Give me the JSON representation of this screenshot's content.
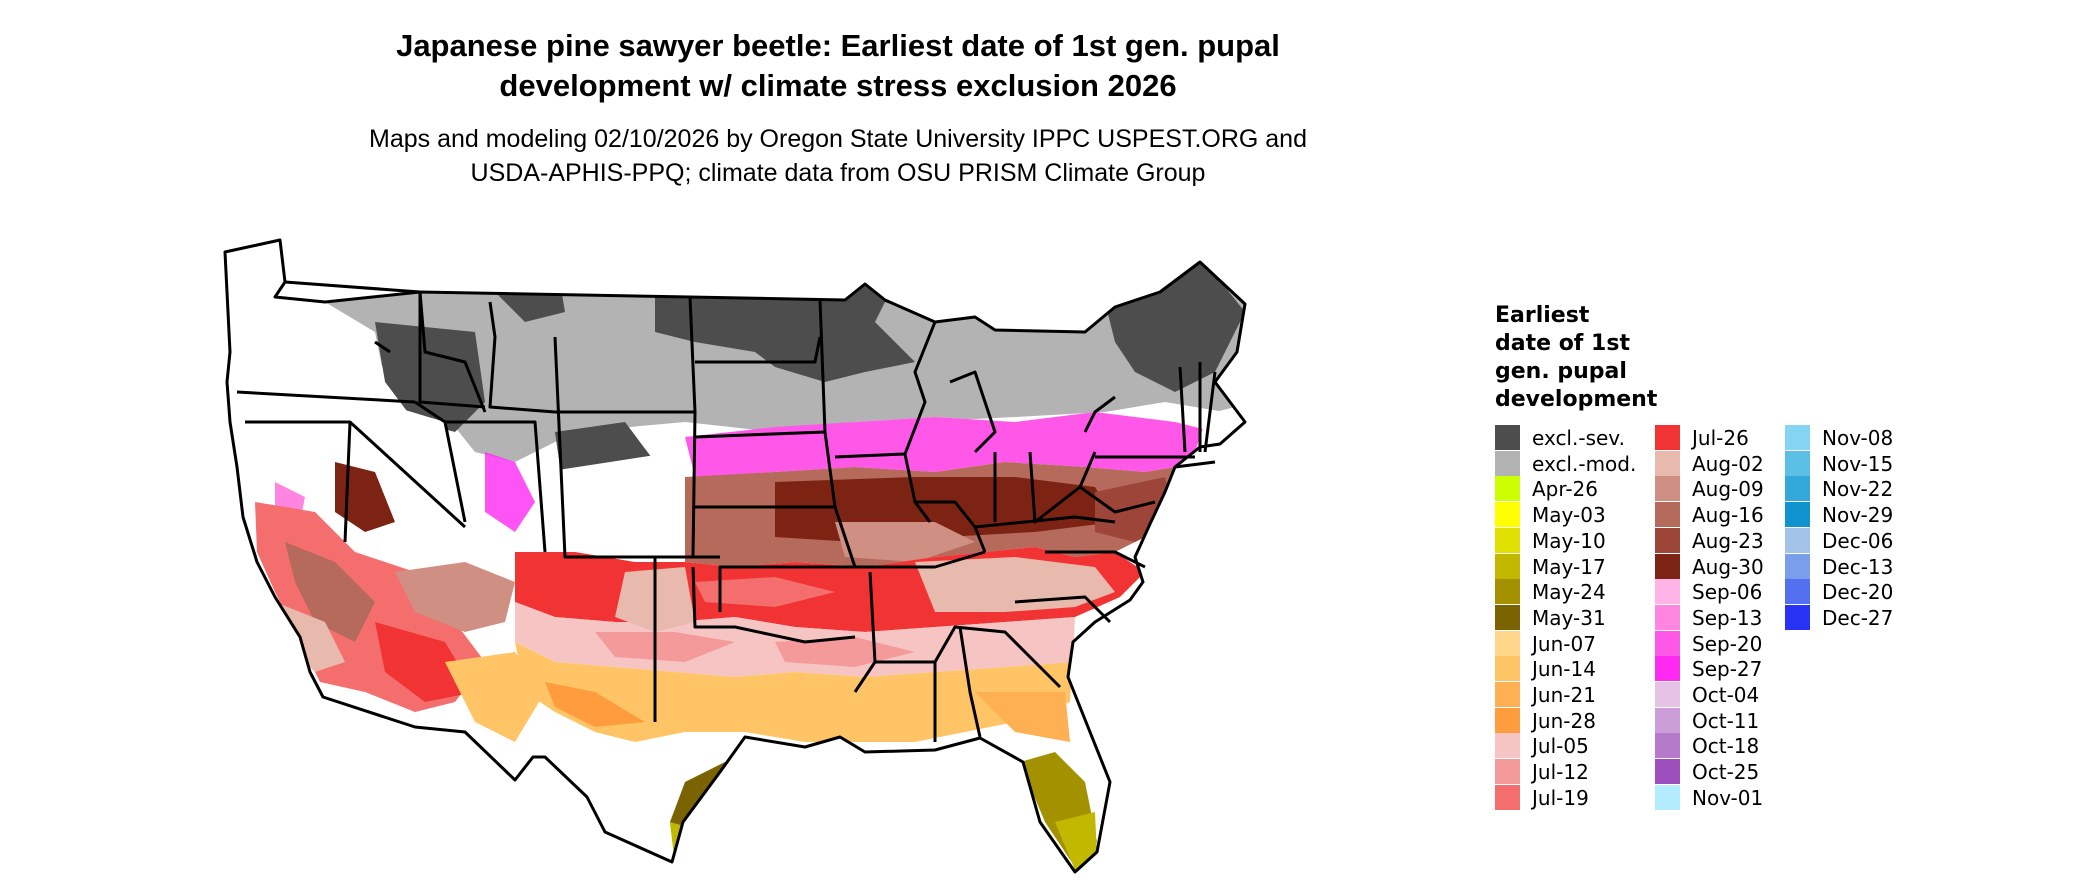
{
  "title_line1": "Japanese pine sawyer beetle: Earliest date of 1st gen. pupal",
  "title_line2": "development w/ climate stress exclusion 2026",
  "subtitle_line1": "Maps and modeling 02/10/2026 by Oregon State University IPPC USPEST.ORG and",
  "subtitle_line2": "USDA-APHIS-PPQ; climate data from OSU PRISM Climate Group",
  "legend": {
    "title_lines": [
      "Earliest",
      "date of 1st",
      "gen. pupal",
      "development"
    ],
    "columns": [
      [
        {
          "label": "excl.-sev.",
          "color": "#4d4d4d"
        },
        {
          "label": "excl.-mod.",
          "color": "#b3b3b3"
        },
        {
          "label": "Apr-26",
          "color": "#ccff00"
        },
        {
          "label": "May-03",
          "color": "#ffff00"
        },
        {
          "label": "May-10",
          "color": "#e0e000"
        },
        {
          "label": "May-17",
          "color": "#c2b800"
        },
        {
          "label": "May-24",
          "color": "#a39100"
        },
        {
          "label": "May-31",
          "color": "#7a6300"
        },
        {
          "label": "Jun-07",
          "color": "#ffd68a"
        },
        {
          "label": "Jun-14",
          "color": "#ffc466"
        },
        {
          "label": "Jun-21",
          "color": "#ffb052"
        },
        {
          "label": "Jun-28",
          "color": "#ff9c3d"
        },
        {
          "label": "Jul-05",
          "color": "#f7c4c4"
        },
        {
          "label": "Jul-12",
          "color": "#f59a9a"
        },
        {
          "label": "Jul-19",
          "color": "#f56e6e"
        }
      ],
      [
        {
          "label": "Jul-26",
          "color": "#f23333"
        },
        {
          "label": "Aug-02",
          "color": "#e8b9ad"
        },
        {
          "label": "Aug-09",
          "color": "#cf8f82"
        },
        {
          "label": "Aug-16",
          "color": "#b56a5c"
        },
        {
          "label": "Aug-23",
          "color": "#9c4538"
        },
        {
          "label": "Aug-30",
          "color": "#7d2314"
        },
        {
          "label": "Sep-06",
          "color": "#ffb3e6"
        },
        {
          "label": "Sep-13",
          "color": "#ff85e0"
        },
        {
          "label": "Sep-20",
          "color": "#ff57e8"
        },
        {
          "label": "Sep-27",
          "color": "#ff29f2"
        },
        {
          "label": "Oct-04",
          "color": "#e6c2e6"
        },
        {
          "label": "Oct-11",
          "color": "#cc9ed9"
        },
        {
          "label": "Oct-18",
          "color": "#b57acc"
        },
        {
          "label": "Oct-25",
          "color": "#9e4fbd"
        },
        {
          "label": "Nov-01",
          "color": "#b3ecff"
        }
      ],
      [
        {
          "label": "Nov-08",
          "color": "#85d4f2"
        },
        {
          "label": "Nov-15",
          "color": "#5cbfe6"
        },
        {
          "label": "Nov-22",
          "color": "#33a8db"
        },
        {
          "label": "Nov-29",
          "color": "#0f94cf"
        },
        {
          "label": "Dec-06",
          "color": "#a3c2e8"
        },
        {
          "label": "Dec-13",
          "color": "#7a9eeb"
        },
        {
          "label": "Dec-20",
          "color": "#5270f0"
        },
        {
          "label": "Dec-27",
          "color": "#2933f5"
        }
      ]
    ]
  },
  "map": {
    "region": "conterminous-us",
    "outline_color": "#000000",
    "background_color": "#ffffff"
  }
}
